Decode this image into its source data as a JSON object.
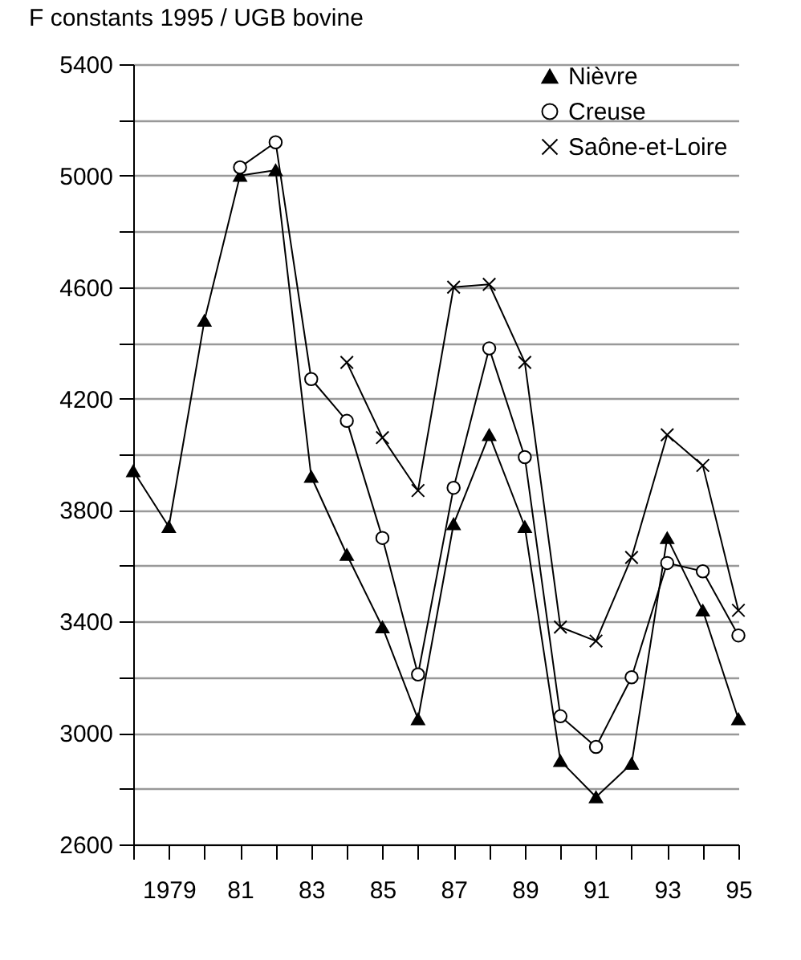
{
  "chart_data": {
    "type": "line",
    "title": "F constants 1995 / UGB bovine",
    "x": [
      1978,
      1979,
      1980,
      1981,
      1982,
      1983,
      1984,
      1985,
      1986,
      1987,
      1988,
      1989,
      1990,
      1991,
      1992,
      1993,
      1994,
      1995
    ],
    "series": [
      {
        "name": "Nièvre",
        "color": "#000000",
        "marker": "triangle",
        "values": [
          3940,
          3740,
          4480,
          5000,
          5020,
          3920,
          3640,
          3380,
          3050,
          3750,
          4070,
          3740,
          2900,
          2770,
          2890,
          3700,
          3440,
          3050
        ]
      },
      {
        "name": "Creuse",
        "color": "#000000",
        "marker": "circle",
        "values": [
          null,
          null,
          null,
          5030,
          5120,
          4270,
          4120,
          3700,
          3210,
          3880,
          4380,
          3990,
          3060,
          2950,
          3200,
          3610,
          3580,
          3350
        ]
      },
      {
        "name": "Saône-et-Loire",
        "color": "#000000",
        "marker": "cross",
        "values": [
          null,
          null,
          null,
          null,
          null,
          null,
          4330,
          4060,
          3870,
          4600,
          4610,
          4330,
          3380,
          3330,
          3630,
          4070,
          3960,
          3440
        ]
      }
    ],
    "xlim": [
      1978,
      1995
    ],
    "xticks": [
      {
        "value": 1978,
        "label": null
      },
      {
        "value": 1979,
        "label": "1979"
      },
      {
        "value": 1980,
        "label": null
      },
      {
        "value": 1981,
        "label": "81"
      },
      {
        "value": 1982,
        "label": null
      },
      {
        "value": 1983,
        "label": "83"
      },
      {
        "value": 1984,
        "label": null
      },
      {
        "value": 1985,
        "label": "85"
      },
      {
        "value": 1986,
        "label": null
      },
      {
        "value": 1987,
        "label": "87"
      },
      {
        "value": 1988,
        "label": null
      },
      {
        "value": 1989,
        "label": "89"
      },
      {
        "value": 1990,
        "label": null
      },
      {
        "value": 1991,
        "label": "91"
      },
      {
        "value": 1992,
        "label": null
      },
      {
        "value": 1993,
        "label": "93"
      },
      {
        "value": 1994,
        "label": null
      },
      {
        "value": 1995,
        "label": "95"
      }
    ],
    "ylim": [
      2600,
      5400
    ],
    "yticks": [
      2600,
      {
        "value": 2800,
        "label": null
      },
      3000,
      {
        "value": 3200,
        "label": null
      },
      3400,
      {
        "value": 3600,
        "label": null
      },
      3800,
      {
        "value": 4000,
        "label": null
      },
      4200,
      {
        "value": 4400,
        "label": null
      },
      4600,
      {
        "value": 4800,
        "label": null
      },
      5000,
      {
        "value": 5200,
        "label": null
      },
      5400
    ],
    "grid": "y",
    "legend": "top right",
    "line_style": "solid"
  }
}
